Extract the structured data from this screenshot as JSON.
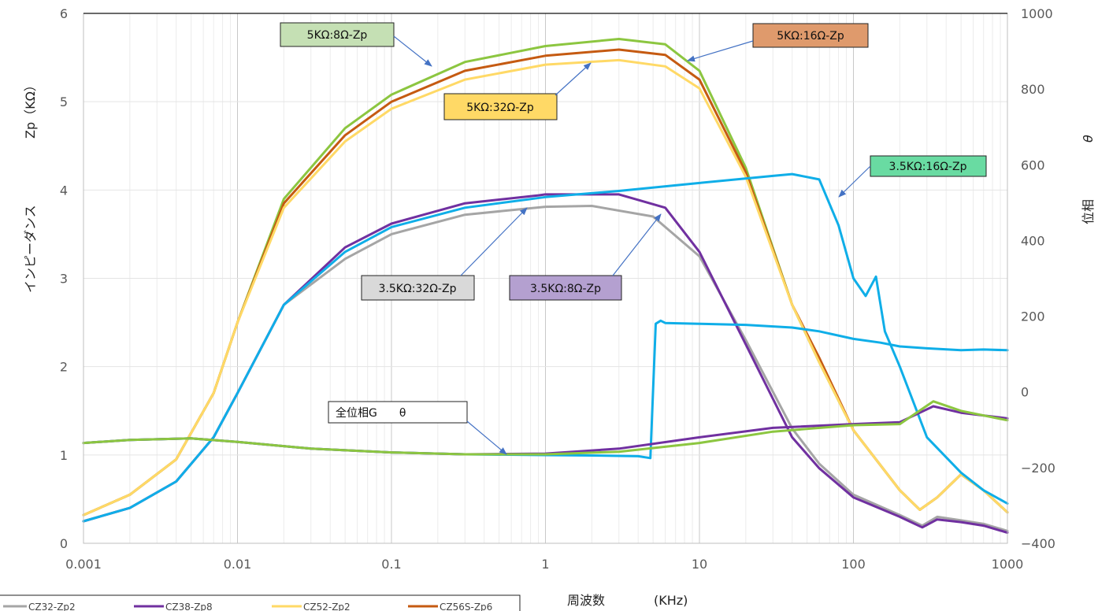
{
  "chart_data": {
    "type": "line",
    "x_scale": "log",
    "xlim": [
      0.001,
      1000
    ],
    "ylim_left": [
      0,
      6
    ],
    "ylim_right": [
      -400,
      1000
    ],
    "x_ticks": [
      "0.001",
      "0.01",
      "0.1",
      "1",
      "10",
      "100",
      "1000"
    ],
    "y_ticks_left": [
      "0",
      "1",
      "2",
      "3",
      "4",
      "5",
      "6"
    ],
    "y_ticks_right": [
      "−400",
      "−200",
      "0",
      "200",
      "400",
      "600",
      "800",
      "1000"
    ],
    "xlabel": "周波数",
    "xlabel_unit": "(KHz)",
    "ylabel_left": "インピーダンス",
    "ylabel_left_symbol": "Zp（KΩ）",
    "ylabel_right": "位相",
    "ylabel_right_symbol": "θ",
    "grid": true,
    "legend": [
      "CZ32-Zp2",
      "CZ38-Zp8",
      "CZ52-Zp2",
      "CZ56S-Zp6"
    ],
    "annotations": [
      "5KΩ:8Ω-Zp",
      "5KΩ:16Ω-Zp",
      "5KΩ:32Ω-Zp",
      "3.5KΩ:16Ω-Zp",
      "3.5KΩ:32Ω-Zp",
      "3.5KΩ:8Ω-Zp",
      "全位相G　　θ"
    ],
    "series": [
      {
        "color": "#8cc640",
        "axis": "left",
        "x": [
          0.001,
          0.002,
          0.004,
          0.007,
          0.01,
          0.02,
          0.05,
          0.1,
          0.3,
          1,
          3,
          6,
          10,
          20,
          40,
          60,
          100,
          200,
          270,
          350,
          500,
          700,
          1000
        ],
        "values": [
          0.32,
          0.55,
          0.95,
          1.7,
          2.5,
          3.9,
          4.7,
          5.08,
          5.45,
          5.63,
          5.71,
          5.65,
          5.35,
          4.25,
          2.7,
          2.05,
          1.28,
          0.6,
          0.38,
          0.52,
          0.78,
          0.6,
          0.35
        ]
      },
      {
        "color": "#c55a11",
        "axis": "left",
        "x": [
          0.001,
          0.002,
          0.004,
          0.007,
          0.01,
          0.02,
          0.05,
          0.1,
          0.3,
          1,
          3,
          6,
          10,
          20,
          40,
          60,
          100,
          200,
          270,
          350,
          500,
          700,
          1000
        ],
        "values": [
          0.32,
          0.55,
          0.95,
          1.7,
          2.5,
          3.85,
          4.62,
          5.0,
          5.35,
          5.52,
          5.59,
          5.53,
          5.25,
          4.2,
          2.7,
          2.1,
          1.28,
          0.6,
          0.38,
          0.52,
          0.78,
          0.6,
          0.35
        ]
      },
      {
        "color": "#ffd966",
        "axis": "left",
        "x": [
          0.001,
          0.002,
          0.004,
          0.007,
          0.01,
          0.02,
          0.05,
          0.1,
          0.3,
          1,
          3,
          6,
          10,
          20,
          40,
          60,
          100,
          200,
          270,
          350,
          500,
          700,
          1000
        ],
        "values": [
          0.32,
          0.55,
          0.95,
          1.7,
          2.5,
          3.8,
          4.55,
          4.92,
          5.25,
          5.42,
          5.47,
          5.4,
          5.15,
          4.15,
          2.7,
          2.05,
          1.28,
          0.6,
          0.38,
          0.52,
          0.78,
          0.6,
          0.35
        ]
      },
      {
        "color": "#a5a5a5",
        "axis": "left",
        "x": [
          0.001,
          0.002,
          0.004,
          0.007,
          0.01,
          0.02,
          0.05,
          0.1,
          0.3,
          1,
          2,
          5,
          10,
          20,
          40,
          60,
          100,
          200,
          280,
          350,
          500,
          700,
          1000
        ],
        "values": [
          0.25,
          0.4,
          0.7,
          1.2,
          1.7,
          2.7,
          3.22,
          3.5,
          3.72,
          3.81,
          3.82,
          3.7,
          3.25,
          2.3,
          1.3,
          0.9,
          0.55,
          0.32,
          0.2,
          0.3,
          0.26,
          0.22,
          0.14
        ]
      },
      {
        "color": "#7030a0",
        "axis": "left",
        "x": [
          0.001,
          0.002,
          0.004,
          0.007,
          0.01,
          0.02,
          0.05,
          0.1,
          0.3,
          0.9,
          1,
          3,
          6,
          10,
          20,
          40,
          60,
          100,
          200,
          280,
          350,
          500,
          700,
          1000
        ],
        "values": [
          0.25,
          0.4,
          0.7,
          1.2,
          1.7,
          2.7,
          3.35,
          3.62,
          3.85,
          3.94,
          3.95,
          3.95,
          3.8,
          3.3,
          2.25,
          1.2,
          0.85,
          0.52,
          0.3,
          0.18,
          0.27,
          0.24,
          0.2,
          0.12
        ]
      },
      {
        "color": "#0faee8",
        "axis": "left",
        "x": [
          0.001,
          0.002,
          0.004,
          0.007,
          0.01,
          0.02,
          0.05,
          0.1,
          0.3,
          1,
          3,
          10,
          30,
          40,
          60,
          80,
          100,
          120,
          140,
          160,
          200,
          300,
          500,
          700,
          1000
        ],
        "values": [
          0.25,
          0.4,
          0.7,
          1.2,
          1.7,
          2.7,
          3.3,
          3.58,
          3.8,
          3.92,
          3.99,
          4.08,
          4.16,
          4.18,
          4.12,
          3.6,
          3.0,
          2.8,
          3.02,
          2.4,
          2.0,
          1.2,
          0.8,
          0.6,
          0.45
        ]
      },
      {
        "color": "#0faee8",
        "axis": "right",
        "x": [
          0.001,
          0.002,
          0.005,
          0.01,
          0.03,
          0.1,
          0.3,
          1,
          2,
          4,
          4.8,
          5.2,
          5.6,
          6,
          10,
          20,
          40,
          60,
          100,
          150,
          200,
          300,
          500,
          700,
          1000
        ],
        "values": [
          -135,
          -127,
          -123,
          -132,
          -150,
          -160,
          -165,
          -167,
          -168,
          -170,
          -175,
          180,
          188,
          182,
          180,
          177,
          170,
          160,
          140,
          130,
          120,
          115,
          110,
          112,
          110
        ]
      },
      {
        "color": "#7030a0",
        "axis": "right",
        "x": [
          0.001,
          0.002,
          0.005,
          0.01,
          0.03,
          0.1,
          0.3,
          1,
          3,
          10,
          30,
          100,
          200,
          330,
          500,
          1000
        ],
        "values": [
          -135,
          -127,
          -123,
          -132,
          -150,
          -160,
          -165,
          -163,
          -150,
          -120,
          -95,
          -85,
          -80,
          -38,
          -55,
          -70
        ]
      },
      {
        "color": "#8cc640",
        "axis": "right",
        "x": [
          0.001,
          0.002,
          0.005,
          0.01,
          0.03,
          0.1,
          0.3,
          1,
          3,
          10,
          30,
          100,
          200,
          330,
          500,
          1000
        ],
        "values": [
          -135,
          -127,
          -123,
          -132,
          -150,
          -160,
          -165,
          -165,
          -158,
          -135,
          -105,
          -88,
          -85,
          -25,
          -50,
          -75
        ]
      }
    ]
  }
}
